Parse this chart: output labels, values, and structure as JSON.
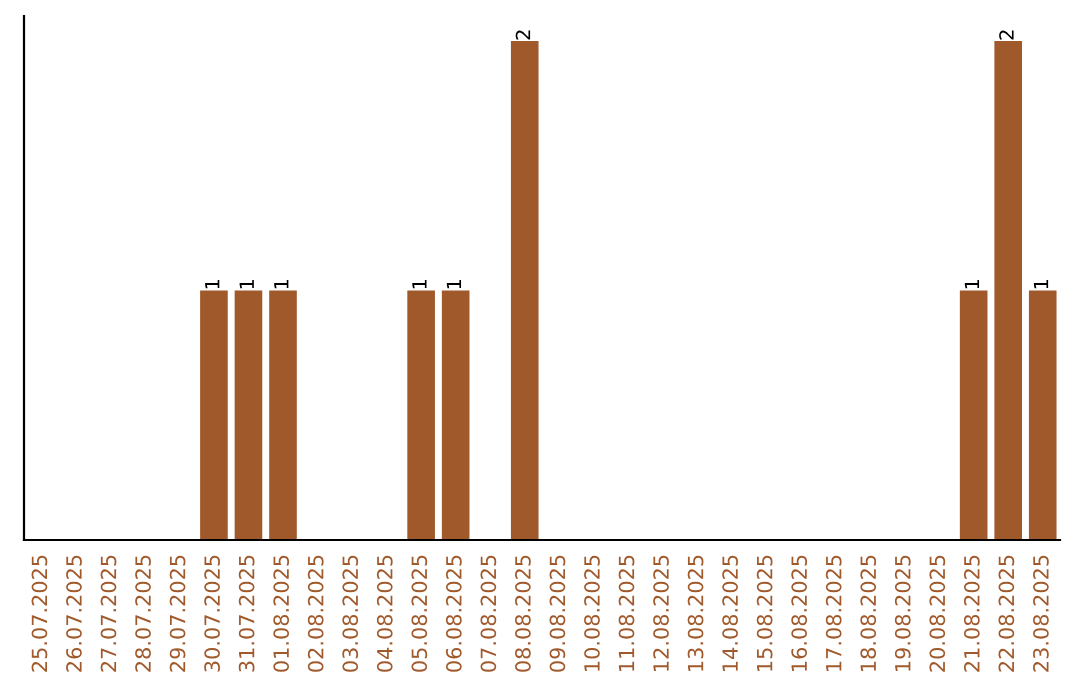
{
  "chart_data": {
    "type": "bar",
    "categories": [
      "25.07.2025",
      "26.07.2025",
      "27.07.2025",
      "28.07.2025",
      "29.07.2025",
      "30.07.2025",
      "31.07.2025",
      "01.08.2025",
      "02.08.2025",
      "03.08.2025",
      "04.08.2025",
      "05.08.2025",
      "06.08.2025",
      "07.08.2025",
      "08.08.2025",
      "09.08.2025",
      "10.08.2025",
      "11.08.2025",
      "12.08.2025",
      "13.08.2025",
      "14.08.2025",
      "15.08.2025",
      "16.08.2025",
      "17.08.2025",
      "18.08.2025",
      "19.08.2025",
      "20.08.2025",
      "21.08.2025",
      "22.08.2025",
      "23.08.2025"
    ],
    "values": [
      0,
      0,
      0,
      0,
      0,
      1,
      1,
      1,
      0,
      0,
      0,
      1,
      1,
      0,
      2,
      0,
      0,
      0,
      0,
      0,
      0,
      0,
      0,
      0,
      0,
      0,
      0,
      1,
      2,
      1
    ],
    "value_labels": [
      null,
      null,
      null,
      null,
      null,
      "1",
      "1",
      "1",
      null,
      null,
      null,
      "1",
      "1",
      null,
      "2",
      null,
      null,
      null,
      null,
      null,
      null,
      null,
      null,
      null,
      null,
      null,
      null,
      "1",
      "2",
      "1"
    ],
    "color": "#a0592b",
    "grid": false,
    "legend": false,
    "tick_labels": "x"
  }
}
